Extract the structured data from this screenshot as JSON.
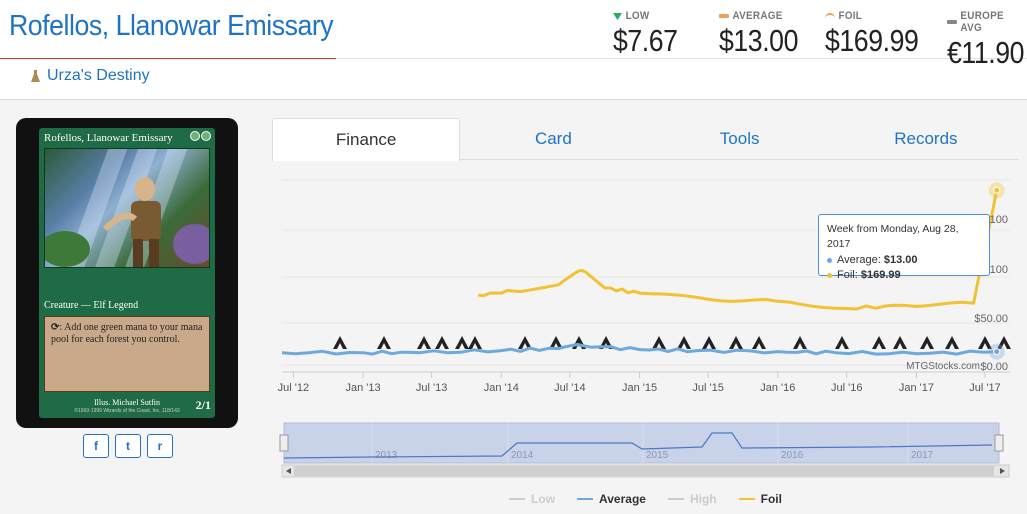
{
  "card": {
    "name": "Rofellos, Llanowar Emissary",
    "set_name": "Urza's Destiny",
    "image": {
      "name": "Rofellos, Llanowar Emissary",
      "type_line": "Creature — Elf Legend",
      "rules_text": ": Add one green mana to your mana pool for each forest you control.",
      "illustrator": "Illus. Michael Sutfin",
      "copyright": "©1993-1999 Wizards of the Coast, Inc. 118/143",
      "power_toughness": "2/1"
    }
  },
  "prices": [
    {
      "label": "LOW",
      "value": "$7.67",
      "marker": "low"
    },
    {
      "label": "AVERAGE",
      "value": "$13.00",
      "marker": "avg"
    },
    {
      "label": "FOIL",
      "value": "$169.99",
      "marker": "foil"
    },
    {
      "label": "EUROPE AVG",
      "value": "€11.90",
      "marker": "eu"
    }
  ],
  "share": [
    {
      "label": "f",
      "icon": "facebook-icon"
    },
    {
      "label": "t",
      "icon": "twitter-icon"
    },
    {
      "label": "r",
      "icon": "reddit-icon"
    }
  ],
  "tabs": [
    "Finance",
    "Card",
    "Tools",
    "Records"
  ],
  "active_tab": "Finance",
  "colors": {
    "brand_blue": "#1f73c5",
    "average": "#6fa8dc",
    "foil": "#f1c232",
    "low": "#cccccc",
    "high": "#cccccc"
  },
  "chart_data": {
    "type": "line",
    "x_ticks": [
      "Jul '12",
      "Jan '13",
      "Jul '13",
      "Jan '14",
      "Jul '14",
      "Jan '15",
      "Jul '15",
      "Jan '16",
      "Jul '16",
      "Jan '17",
      "Jul '17"
    ],
    "y_tick_labels": [
      "100",
      "100",
      "$50.00",
      "$0.00"
    ],
    "series": [
      {
        "name": "Average",
        "x": [
          "2012-06",
          "2013-01",
          "2013-06",
          "2014-01",
          "2014-06",
          "2014-08",
          "2015-01",
          "2015-06",
          "2016-01",
          "2016-06",
          "2017-01",
          "2017-08"
        ],
        "values": [
          12,
          12,
          12,
          14,
          16,
          19,
          15,
          14,
          13,
          12,
          11,
          13
        ]
      },
      {
        "name": "Foil",
        "x": [
          "2013-11",
          "2014-02",
          "2014-06",
          "2014-08",
          "2014-10",
          "2015-01",
          "2015-07",
          "2016-01",
          "2016-07",
          "2016-12",
          "2017-06",
          "2017-08"
        ],
        "values": [
          68,
          72,
          78,
          92,
          75,
          70,
          64,
          62,
          55,
          58,
          60,
          170
        ]
      }
    ],
    "legend": [
      {
        "name": "Low",
        "color": "#cccccc",
        "active": false
      },
      {
        "name": "Average",
        "color": "#6fa8dc",
        "active": true
      },
      {
        "name": "High",
        "color": "#cccccc",
        "active": false
      },
      {
        "name": "Foil",
        "color": "#f1c232",
        "active": true
      }
    ],
    "navigator_years": [
      "2013",
      "2014",
      "2015",
      "2016",
      "2017"
    ],
    "credit": "MTGStocks.com"
  },
  "tooltip": {
    "header": "Week from Monday, Aug 28, 2017",
    "average_label": "Average:",
    "average_value": "$13.00",
    "foil_label": "Foil:",
    "foil_value": "$169.99"
  }
}
